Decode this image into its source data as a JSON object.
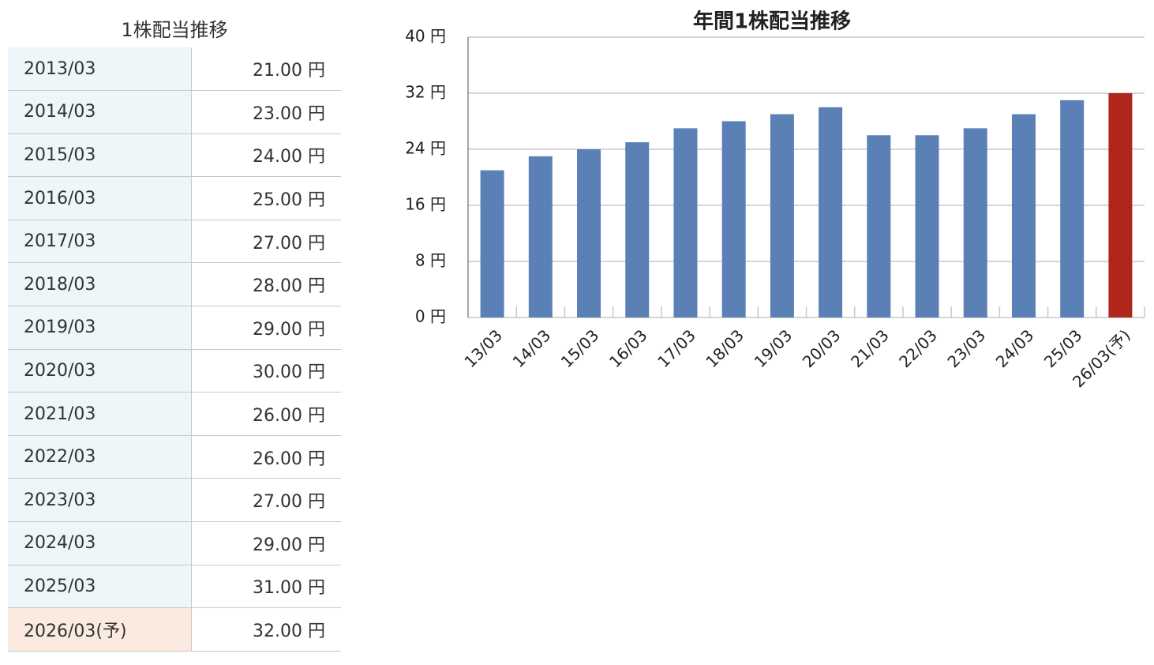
{
  "table": {
    "title": "1株配当推移",
    "rows": [
      [
        "2013/03",
        "21.00 円"
      ],
      [
        "2014/03",
        "23.00 円"
      ],
      [
        "2015/03",
        "24.00 円"
      ],
      [
        "2016/03",
        "25.00 円"
      ],
      [
        "2017/03",
        "27.00 円"
      ],
      [
        "2018/03",
        "28.00 円"
      ],
      [
        "2019/03",
        "29.00 円"
      ],
      [
        "2020/03",
        "30.00 円"
      ],
      [
        "2021/03",
        "26.00 円"
      ],
      [
        "2022/03",
        "26.00 円"
      ],
      [
        "2023/03",
        "27.00 円"
      ],
      [
        "2024/03",
        "29.00 円"
      ],
      [
        "2025/03",
        "31.00 円"
      ],
      [
        "2026/03(予)",
        "32.00 円"
      ]
    ]
  },
  "chart_data": {
    "type": "bar",
    "title": "年間1株配当推移",
    "categories": [
      "13/03",
      "14/03",
      "15/03",
      "16/03",
      "17/03",
      "18/03",
      "19/03",
      "20/03",
      "21/03",
      "22/03",
      "23/03",
      "24/03",
      "25/03",
      "26/03(予)"
    ],
    "values": [
      21,
      23,
      24,
      25,
      27,
      28,
      29,
      30,
      26,
      26,
      27,
      29,
      31,
      32
    ],
    "colors": [
      "#5a80b6",
      "#5a80b6",
      "#5a80b6",
      "#5a80b6",
      "#5a80b6",
      "#5a80b6",
      "#5a80b6",
      "#5a80b6",
      "#5a80b6",
      "#5a80b6",
      "#5a80b6",
      "#5a80b6",
      "#5a80b6",
      "#b1261c"
    ],
    "ylim": [
      0,
      40
    ],
    "yticks": [
      {
        "value": 0,
        "label": "0 円"
      },
      {
        "value": 8,
        "label": "8 円"
      },
      {
        "value": 16,
        "label": "16 円"
      },
      {
        "value": 24,
        "label": "24 円"
      },
      {
        "value": 32,
        "label": "32 円"
      },
      {
        "value": 40,
        "label": "40 円"
      }
    ],
    "grid": true
  }
}
